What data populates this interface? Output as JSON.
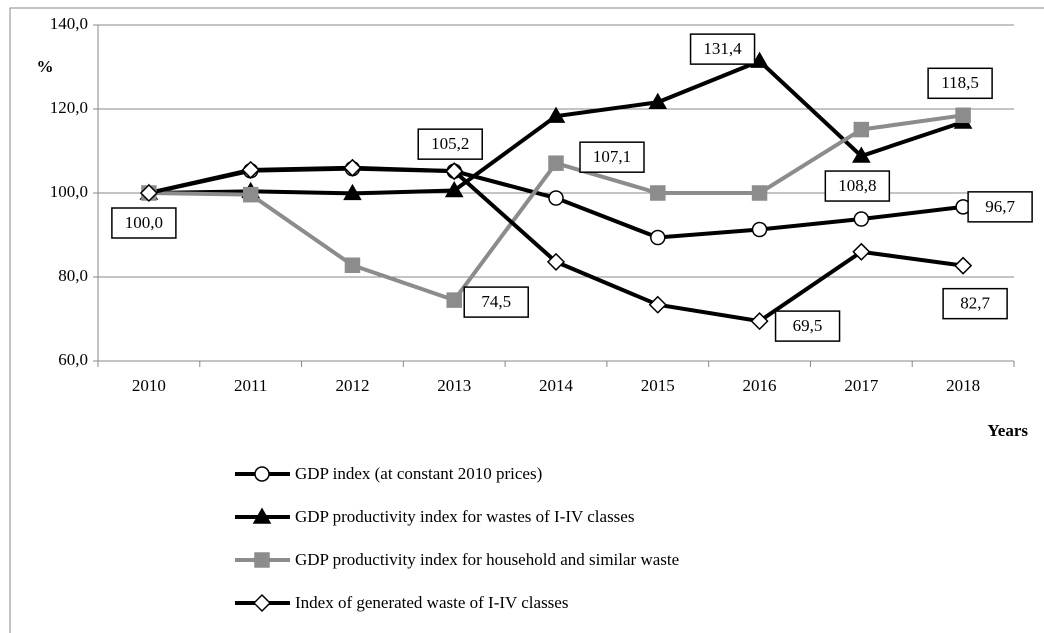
{
  "chart_data": {
    "type": "line",
    "y_label": "%",
    "x_label": "Years",
    "categories": [
      "2010",
      "2011",
      "2012",
      "2013",
      "2014",
      "2015",
      "2016",
      "2017",
      "2018"
    ],
    "ylim": [
      60,
      140
    ],
    "yticks": [
      {
        "value": 60,
        "label": "60,0"
      },
      {
        "value": 80,
        "label": "80,0"
      },
      {
        "value": 100,
        "label": "100,0"
      },
      {
        "value": 120,
        "label": "120,0"
      },
      {
        "value": 140,
        "label": "140,0"
      }
    ],
    "grid": true,
    "legend": "bottom",
    "series": [
      {
        "name": "GDP index (at constant 2010 prices)",
        "color": "#000000",
        "marker": "circle",
        "values": [
          100,
          105.3,
          105.8,
          105.2,
          98.8,
          89.4,
          91.3,
          93.8,
          96.7
        ],
        "value_labels": [
          "100,0",
          null,
          null,
          null,
          null,
          null,
          null,
          null,
          "96,7"
        ]
      },
      {
        "name": "GDP productivity index for wastes of I-IV classes",
        "color": "#000000",
        "marker": "triangle",
        "values": [
          100,
          100.4,
          99.9,
          100.6,
          118.3,
          121.6,
          131.4,
          108.8,
          116.9
        ],
        "value_labels": [
          null,
          null,
          null,
          null,
          null,
          null,
          "131,4",
          "108,8",
          null
        ]
      },
      {
        "name": "GDP productivity index for household and similar waste",
        "color": "#8c8c8c",
        "marker": "square",
        "values": [
          100,
          99.6,
          82.8,
          74.5,
          107.1,
          100.0,
          100.0,
          115.1,
          118.5
        ],
        "value_labels": [
          null,
          null,
          null,
          "74,5",
          "107,1",
          null,
          null,
          null,
          "118,5"
        ]
      },
      {
        "name": "Index of generated waste of I-IV classes",
        "color": "#000000",
        "marker": "diamond",
        "values": [
          100,
          105.5,
          106.0,
          105.2,
          83.6,
          73.4,
          69.5,
          86.0,
          82.7
        ],
        "value_labels": [
          null,
          null,
          null,
          "105,2",
          null,
          null,
          "69,5",
          null,
          "82,7"
        ]
      }
    ]
  }
}
